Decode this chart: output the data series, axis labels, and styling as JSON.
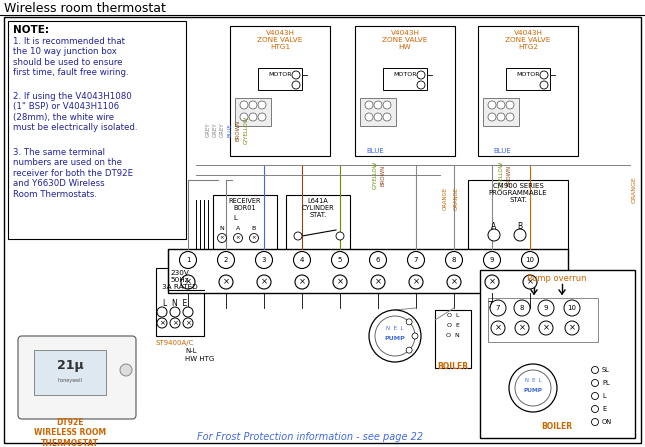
{
  "title": "Wireless room thermostat",
  "bg": "#ffffff",
  "text_color": "#000000",
  "blue_text": "#4169e1",
  "orange_text": "#cc6600",
  "grey_wire": "#808080",
  "blue_wire": "#4169e1",
  "brown_wire": "#8b4513",
  "orange_wire": "#cc6600",
  "gy_wire": "#6a8a00",
  "note_text1": "1. It is recommended that\nthe 10 way junction box\nshould be used to ensure\nfirst time, fault free wiring.",
  "note_text2": "2. If using the V4043H1080\n(1\" BSP) or V4043H1106\n(28mm), the white wire\nmust be electrically isolated.",
  "note_text3": "3. The same terminal\nnumbers are used on the\nreceiver for both the DT92E\nand Y6630D Wireless\nRoom Thermostats.",
  "frost_text": "For Frost Protection information - see page 22"
}
